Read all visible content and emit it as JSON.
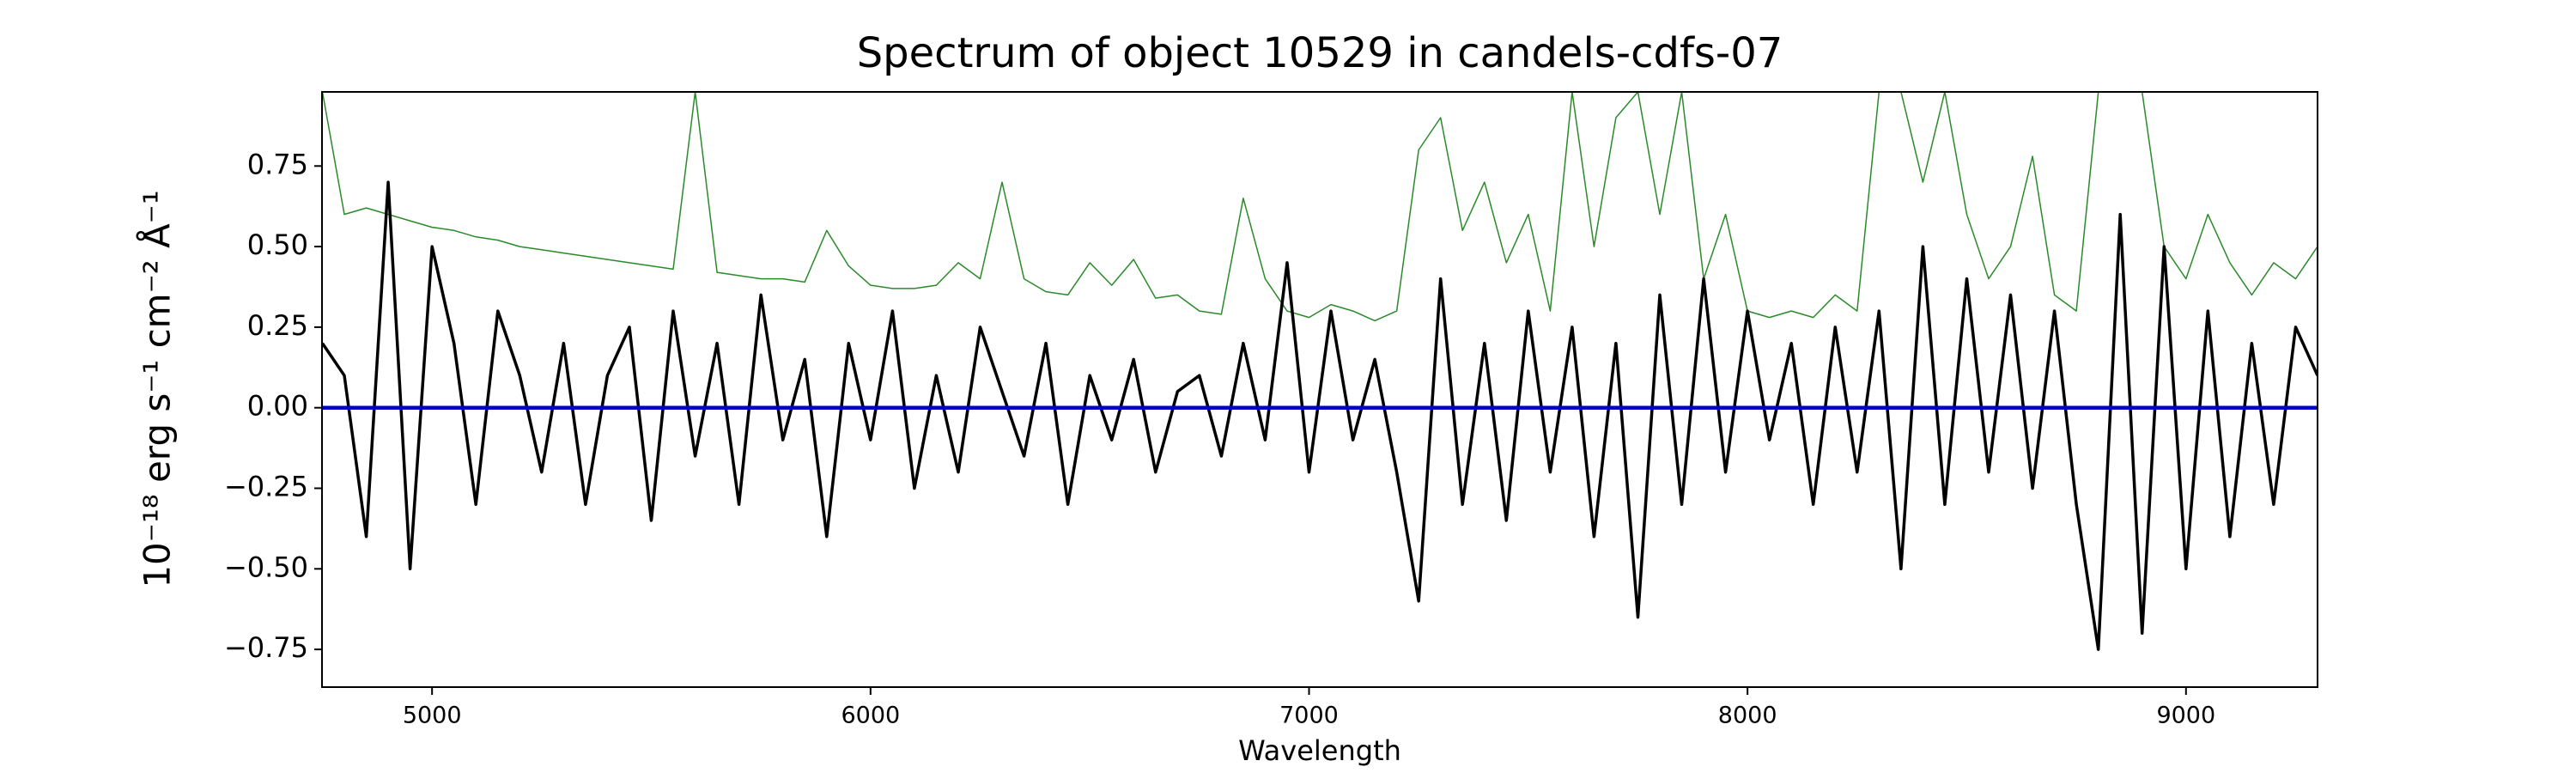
{
  "chart_data": {
    "type": "line",
    "title": "Spectrum of object 10529 in candels-cdfs-07",
    "x_label": "Wavelength",
    "y_label": "10⁻¹⁸ erg s⁻¹ cm⁻² Å⁻¹",
    "x": [
      4750,
      4800,
      4850,
      4900,
      4950,
      5000,
      5050,
      5100,
      5150,
      5200,
      5250,
      5300,
      5350,
      5400,
      5450,
      5500,
      5550,
      5600,
      5650,
      5700,
      5750,
      5800,
      5850,
      5900,
      5950,
      6000,
      6050,
      6100,
      6150,
      6200,
      6250,
      6300,
      6350,
      6400,
      6450,
      6500,
      6550,
      6600,
      6650,
      6700,
      6750,
      6800,
      6850,
      6900,
      6950,
      7000,
      7050,
      7100,
      7150,
      7200,
      7250,
      7300,
      7350,
      7400,
      7450,
      7500,
      7550,
      7600,
      7650,
      7700,
      7750,
      7800,
      7850,
      7900,
      7950,
      8000,
      8050,
      8100,
      8150,
      8200,
      8250,
      8300,
      8350,
      8400,
      8450,
      8500,
      8550,
      8600,
      8650,
      8700,
      8750,
      8800,
      8850,
      8900,
      8950,
      9000,
      9050,
      9100,
      9150,
      9200,
      9250,
      9300
    ],
    "series": [
      {
        "color": "#2a8a2a",
        "width": 1.5,
        "values": [
          0.98,
          0.6,
          0.62,
          0.6,
          0.58,
          0.56,
          0.55,
          0.53,
          0.52,
          0.5,
          0.49,
          0.48,
          0.47,
          0.46,
          0.45,
          0.44,
          0.43,
          0.98,
          0.42,
          0.41,
          0.4,
          0.4,
          0.39,
          0.55,
          0.44,
          0.38,
          0.37,
          0.37,
          0.38,
          0.45,
          0.4,
          0.7,
          0.4,
          0.36,
          0.35,
          0.45,
          0.38,
          0.46,
          0.34,
          0.35,
          0.3,
          0.29,
          0.65,
          0.4,
          0.3,
          0.28,
          0.32,
          0.3,
          0.27,
          0.3,
          0.8,
          0.9,
          0.55,
          0.7,
          0.45,
          0.6,
          0.3,
          0.98,
          0.5,
          0.9,
          0.98,
          0.6,
          0.98,
          0.4,
          0.6,
          0.3,
          0.28,
          0.3,
          0.28,
          0.35,
          0.3,
          0.98,
          0.98,
          0.7,
          0.98,
          0.6,
          0.4,
          0.5,
          0.78,
          0.35,
          0.3,
          0.98,
          0.98,
          0.98,
          0.5,
          0.4,
          0.6,
          0.45,
          0.35,
          0.45,
          0.4,
          0.5
        ]
      },
      {
        "color": "#000000",
        "width": 3.5,
        "values": [
          0.2,
          0.1,
          -0.4,
          0.7,
          -0.5,
          0.5,
          0.2,
          -0.3,
          0.3,
          0.1,
          -0.2,
          0.2,
          -0.3,
          0.1,
          0.25,
          -0.35,
          0.3,
          -0.15,
          0.2,
          -0.3,
          0.35,
          -0.1,
          0.15,
          -0.4,
          0.2,
          -0.1,
          0.3,
          -0.25,
          0.1,
          -0.2,
          0.25,
          0.05,
          -0.15,
          0.2,
          -0.3,
          0.1,
          -0.1,
          0.15,
          -0.2,
          0.05,
          0.1,
          -0.15,
          0.2,
          -0.1,
          0.45,
          -0.2,
          0.3,
          -0.1,
          0.15,
          -0.2,
          -0.6,
          0.4,
          -0.3,
          0.2,
          -0.35,
          0.3,
          -0.2,
          0.25,
          -0.4,
          0.2,
          -0.65,
          0.35,
          -0.3,
          0.4,
          -0.2,
          0.3,
          -0.1,
          0.2,
          -0.3,
          0.25,
          -0.2,
          0.3,
          -0.5,
          0.5,
          -0.3,
          0.4,
          -0.2,
          0.35,
          -0.25,
          0.3,
          -0.3,
          -0.75,
          0.6,
          -0.7,
          0.5,
          -0.5,
          0.3,
          -0.4,
          0.2,
          -0.3,
          0.25,
          0.1
        ]
      },
      {
        "color": "#0000cc",
        "width": 4.5,
        "values": [
          0,
          0,
          0,
          0,
          0,
          0,
          0,
          0,
          0,
          0,
          0,
          0,
          0,
          0,
          0,
          0,
          0,
          0,
          0,
          0,
          0,
          0,
          0,
          0,
          0,
          0,
          0,
          0,
          0,
          0,
          0,
          0,
          0,
          0,
          0,
          0,
          0,
          0,
          0,
          0,
          0,
          0,
          0,
          0,
          0,
          0,
          0,
          0,
          0,
          0,
          0,
          0,
          0,
          0,
          0,
          0,
          0,
          0,
          0,
          0,
          0,
          0,
          0,
          0,
          0,
          0,
          0,
          0,
          0,
          0,
          0,
          0,
          0,
          0,
          0,
          0,
          0,
          0,
          0,
          0,
          0,
          0,
          0,
          0,
          0,
          0,
          0,
          0,
          0,
          0,
          0,
          0
        ]
      }
    ],
    "xlim": [
      4749,
      9300
    ],
    "ylim": [
      -0.867,
      0.98
    ],
    "xticks": [
      5000,
      6000,
      7000,
      8000,
      9000
    ],
    "yticks": [
      {
        "value": -0.75,
        "label": "−0.75"
      },
      {
        "value": -0.5,
        "label": "−0.50"
      },
      {
        "value": -0.25,
        "label": "−0.25"
      },
      {
        "value": 0,
        "label": "0.00"
      },
      {
        "value": 0.25,
        "label": "0.25"
      },
      {
        "value": 0.5,
        "label": "0.50"
      },
      {
        "value": 0.75,
        "label": "0.75"
      }
    ]
  }
}
